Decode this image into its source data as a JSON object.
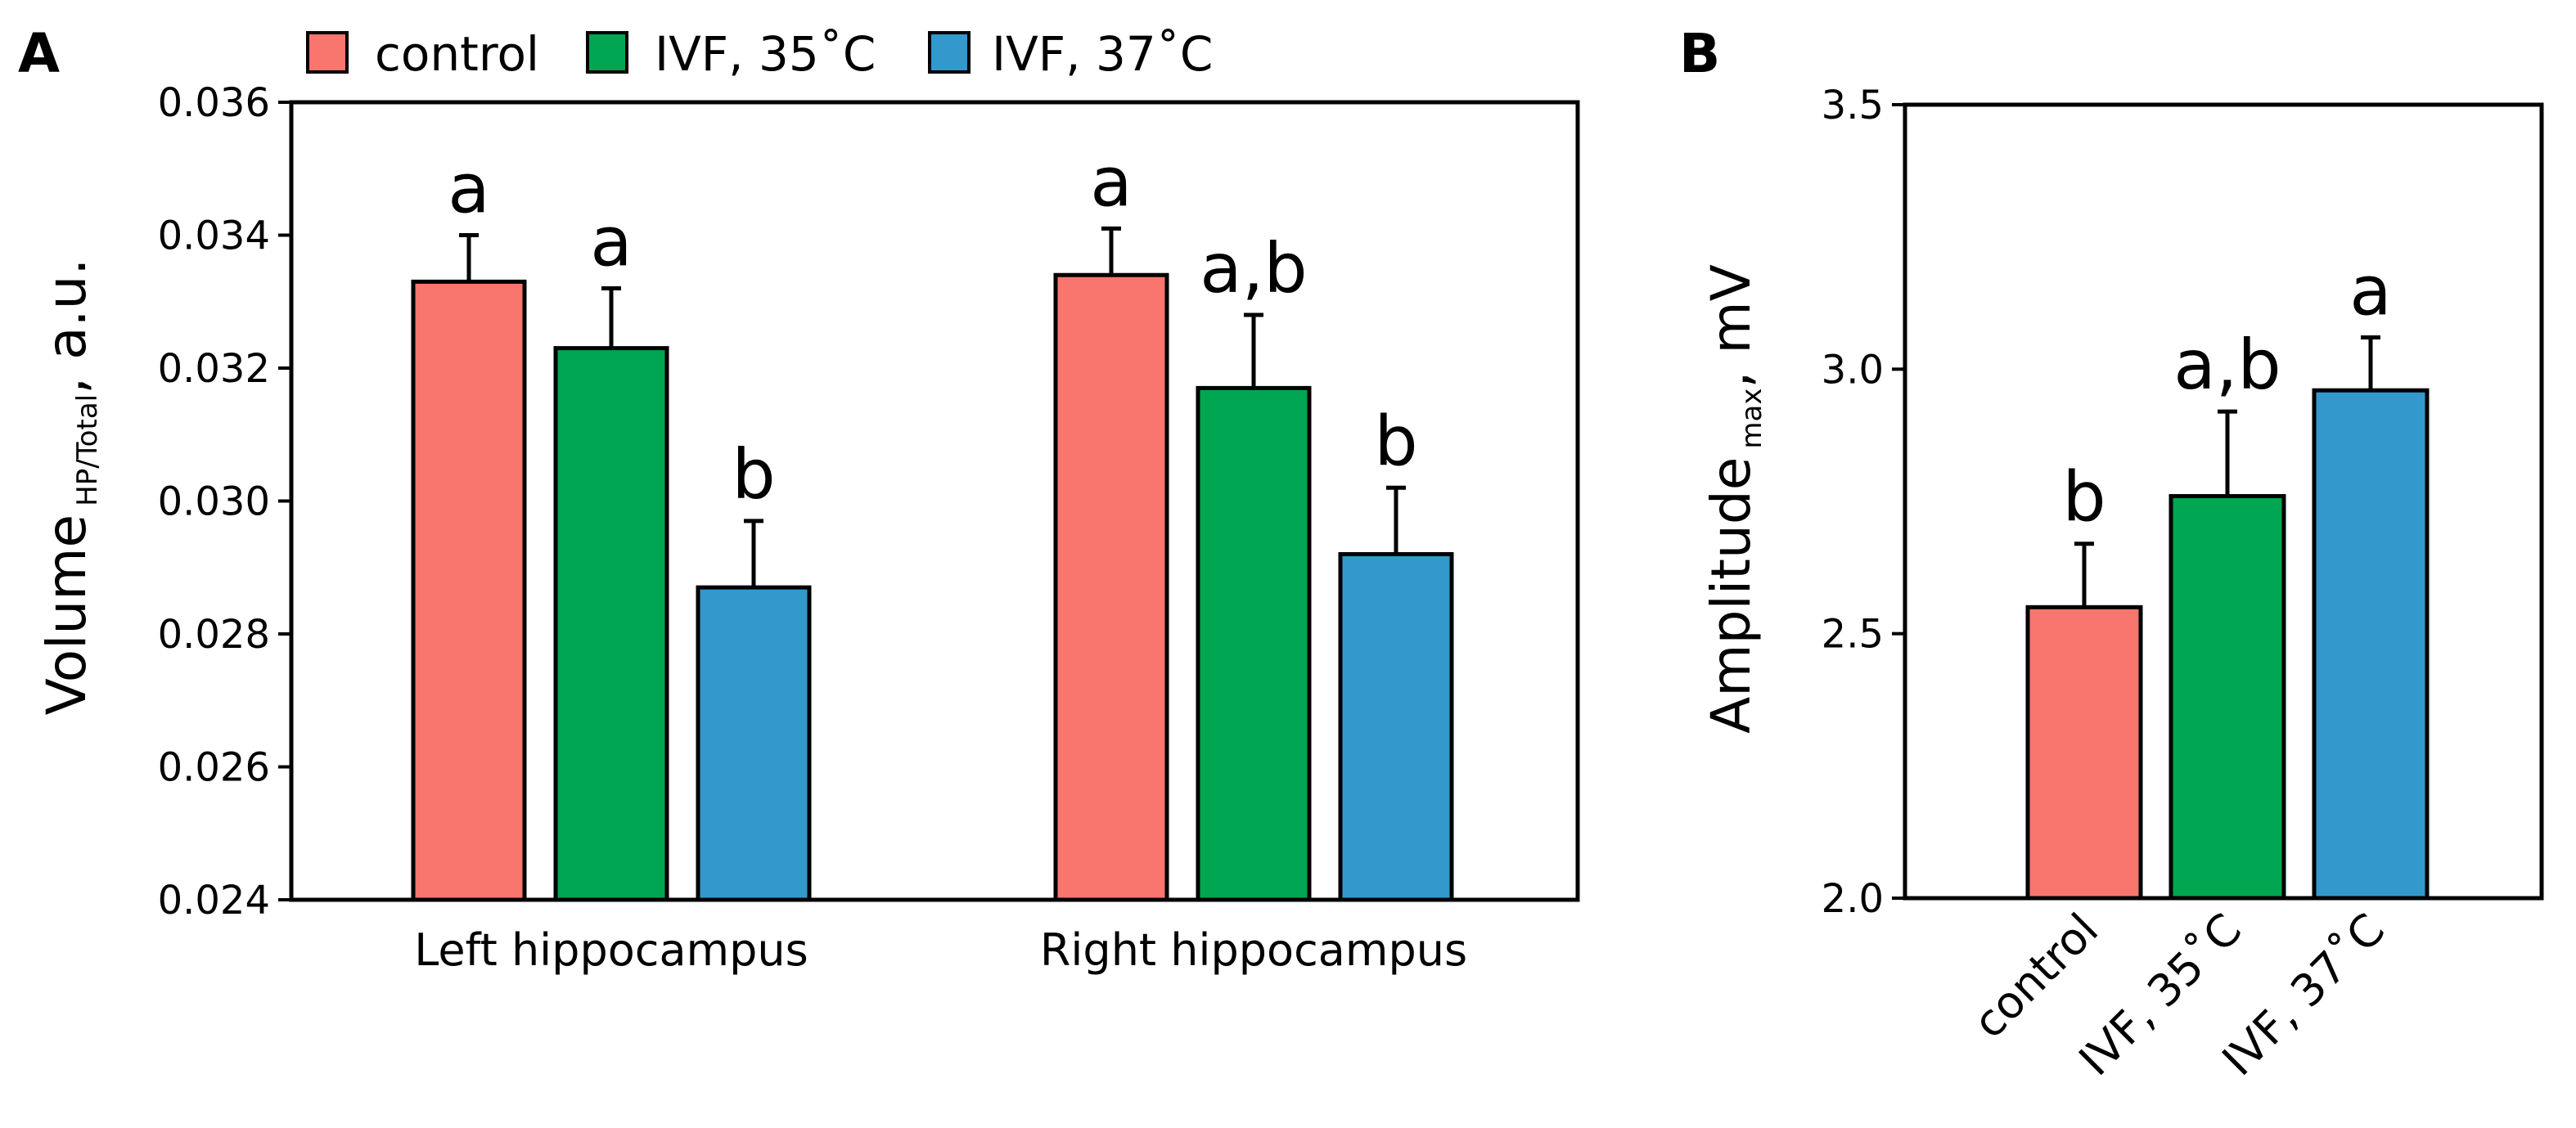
{
  "chart_data": [
    {
      "panel": "A",
      "type": "bar",
      "categories": [
        "Left hippocampus",
        "Right hippocampus"
      ],
      "series": [
        {
          "name": "control",
          "color": "#f8766d",
          "values": [
            0.0333,
            0.0334
          ],
          "errors": [
            0.0007,
            0.0007
          ],
          "labels": [
            "a",
            "a"
          ]
        },
        {
          "name": "IVF, 35˚C",
          "color": "#00a651",
          "values": [
            0.0323,
            0.0317
          ],
          "errors": [
            0.0009,
            0.0011
          ],
          "labels": [
            "a",
            "a,b"
          ]
        },
        {
          "name": "IVF, 37˚C",
          "color": "#3399cc",
          "values": [
            0.0287,
            0.0292
          ],
          "errors": [
            0.001,
            0.001
          ],
          "labels": [
            "b",
            "b"
          ]
        }
      ],
      "ylabel_main": "Volume",
      "ylabel_sub": "HP/Total",
      "ylabel_tail": ", a.u.",
      "ylim": [
        0.024,
        0.036
      ],
      "yticks": [
        0.024,
        0.026,
        0.028,
        0.03,
        0.032,
        0.034,
        0.036
      ],
      "ytick_labels": [
        "0.024",
        "0.026",
        "0.028",
        "0.030",
        "0.032",
        "0.034",
        "0.036"
      ],
      "legend": "top"
    },
    {
      "panel": "B",
      "type": "bar",
      "categories": [
        "control",
        "IVF, 35˚C",
        "IVF, 37˚C"
      ],
      "colors": [
        "#f8766d",
        "#00a651",
        "#3399cc"
      ],
      "values": [
        2.55,
        2.76,
        2.96
      ],
      "errors": [
        0.12,
        0.16,
        0.1
      ],
      "labels": [
        "b",
        "a,b",
        "a"
      ],
      "ylabel_main": "Amplitude",
      "ylabel_sub": "max",
      "ylabel_tail": ", mV",
      "ylim": [
        2.0,
        3.5
      ],
      "yticks": [
        2.0,
        2.5,
        3.0,
        3.5
      ],
      "ytick_labels": [
        "2.0",
        "2.5",
        "3.0",
        "3.5"
      ]
    }
  ]
}
